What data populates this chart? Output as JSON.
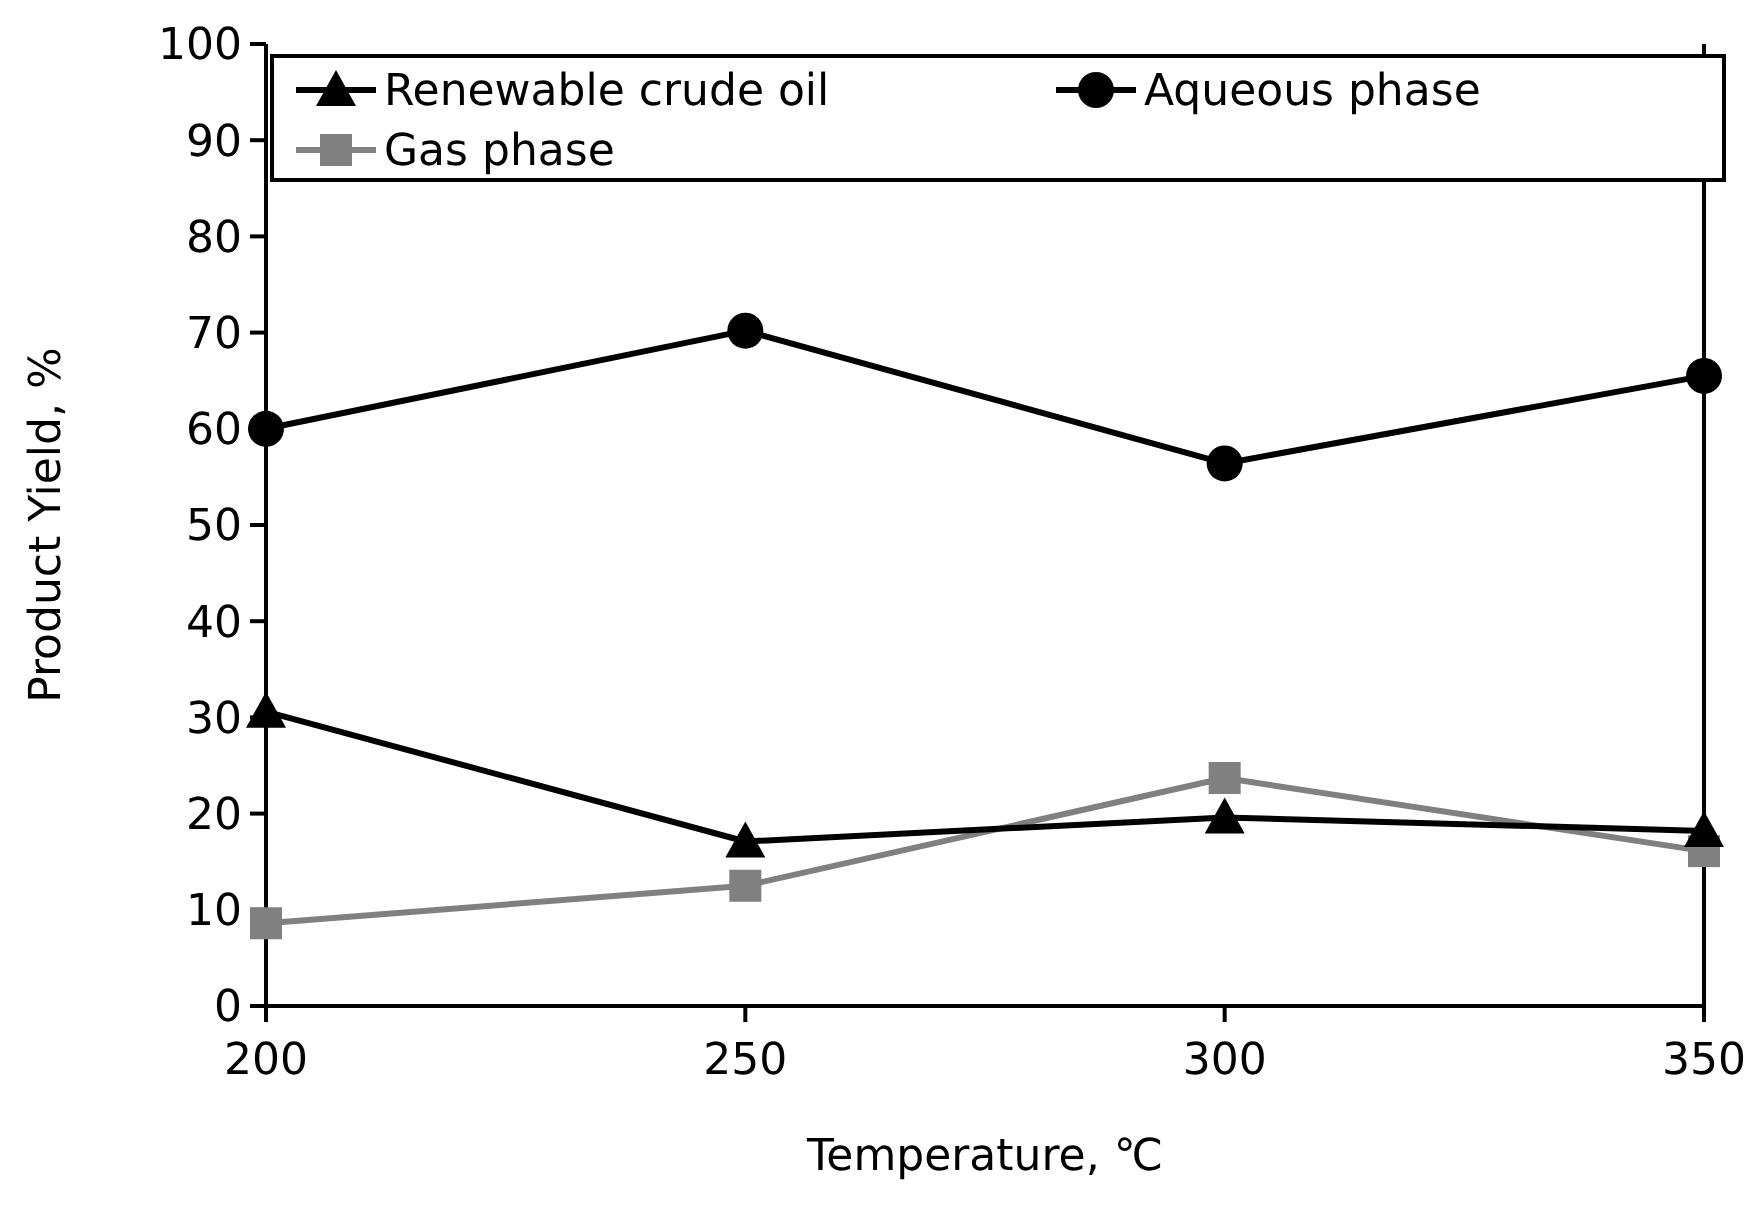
{
  "chart_data": {
    "type": "line",
    "xlabel": "Temperature, ℃",
    "ylabel": "Product Yield, %",
    "x": [
      200,
      250,
      300,
      350
    ],
    "xlim": [
      200,
      350
    ],
    "xticks": [
      200,
      250,
      300,
      350
    ],
    "ylim": [
      0,
      100
    ],
    "yticks": [
      0,
      10,
      20,
      30,
      40,
      50,
      60,
      70,
      80,
      90,
      100
    ],
    "grid": false,
    "legend": "top",
    "line_style": "solid",
    "series": [
      {
        "name": "Renewable crude oil",
        "color": "#000000",
        "marker": "triangle",
        "values": [
          30.6,
          17.1,
          19.6,
          18.2
        ]
      },
      {
        "name": "Aqueous phase",
        "color": "#000000",
        "marker": "circle",
        "values": [
          60,
          70.2,
          56.4,
          65.5
        ]
      },
      {
        "name": "Gas phase",
        "color": "#808080",
        "marker": "square",
        "values": [
          8.6,
          12.5,
          23.7,
          16.1
        ]
      }
    ]
  }
}
